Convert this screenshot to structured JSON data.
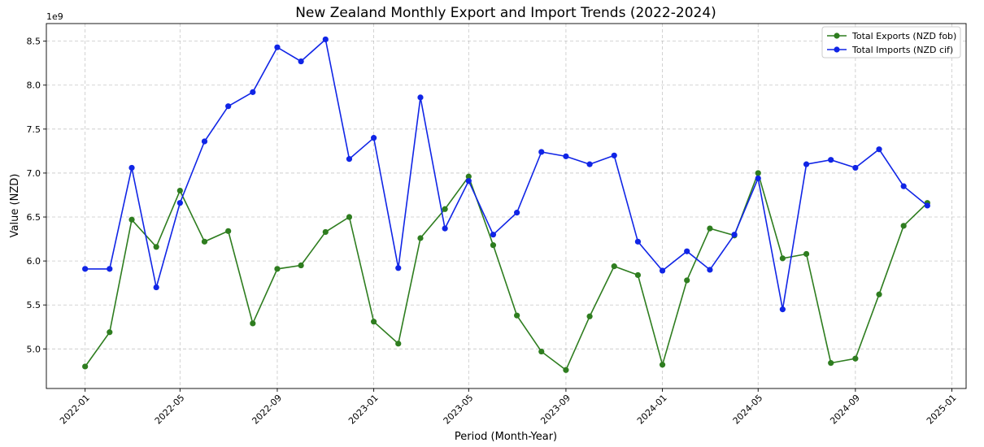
{
  "chart_data": {
    "type": "line",
    "title": "New Zealand Monthly Export and Import Trends (2022-2024)",
    "xlabel": "Period (Month-Year)",
    "ylabel": "Value (NZD)",
    "y_offset_label": "1e9",
    "ylim": [
      4.55,
      8.7
    ],
    "y_ticks": [
      5.0,
      5.5,
      6.0,
      6.5,
      7.0,
      7.5,
      8.0,
      8.5
    ],
    "y_tick_labels": [
      "5.0",
      "5.5",
      "6.0",
      "6.5",
      "7.0",
      "7.5",
      "8.0",
      "8.5"
    ],
    "x_ticks": [
      "2022-01",
      "2022-05",
      "2022-09",
      "2023-01",
      "2023-05",
      "2023-09",
      "2024-01",
      "2024-05",
      "2024-09",
      "2025-01"
    ],
    "xlim": [
      "2021-11-13",
      "2025-01-19"
    ],
    "grid": true,
    "legend_position": "top-right",
    "x": [
      "2022-01",
      "2022-02",
      "2022-03",
      "2022-04",
      "2022-05",
      "2022-06",
      "2022-07",
      "2022-08",
      "2022-09",
      "2022-10",
      "2022-11",
      "2022-12",
      "2023-01",
      "2023-02",
      "2023-03",
      "2023-04",
      "2023-05",
      "2023-06",
      "2023-07",
      "2023-08",
      "2023-09",
      "2023-10",
      "2023-11",
      "2023-12",
      "2024-01",
      "2024-02",
      "2024-03",
      "2024-04",
      "2024-05",
      "2024-06",
      "2024-07",
      "2024-08",
      "2024-09",
      "2024-10",
      "2024-11",
      "2024-12"
    ],
    "series": [
      {
        "name": "Total Exports (NZD fob)",
        "color": "#2e7d1f",
        "values": [
          4.8,
          5.19,
          6.47,
          6.16,
          6.8,
          6.22,
          6.34,
          5.29,
          5.91,
          5.95,
          6.33,
          6.5,
          5.31,
          5.06,
          6.26,
          6.59,
          6.96,
          6.18,
          5.38,
          4.97,
          4.76,
          5.37,
          5.94,
          5.84,
          4.82,
          5.78,
          6.37,
          6.29,
          7.0,
          6.03,
          6.08,
          4.84,
          4.89,
          5.62,
          6.4,
          6.66
        ]
      },
      {
        "name": "Total Imports (NZD cif)",
        "color": "#1025e6",
        "values": [
          5.91,
          5.91,
          7.06,
          5.7,
          6.66,
          7.36,
          7.76,
          7.92,
          8.43,
          8.27,
          8.52,
          7.16,
          7.4,
          5.92,
          7.86,
          6.37,
          6.91,
          6.3,
          6.55,
          7.24,
          7.19,
          7.1,
          7.2,
          6.22,
          5.89,
          6.11,
          5.9,
          6.3,
          6.94,
          5.45,
          7.1,
          7.15,
          7.06,
          7.27,
          6.85,
          6.63
        ]
      }
    ]
  }
}
